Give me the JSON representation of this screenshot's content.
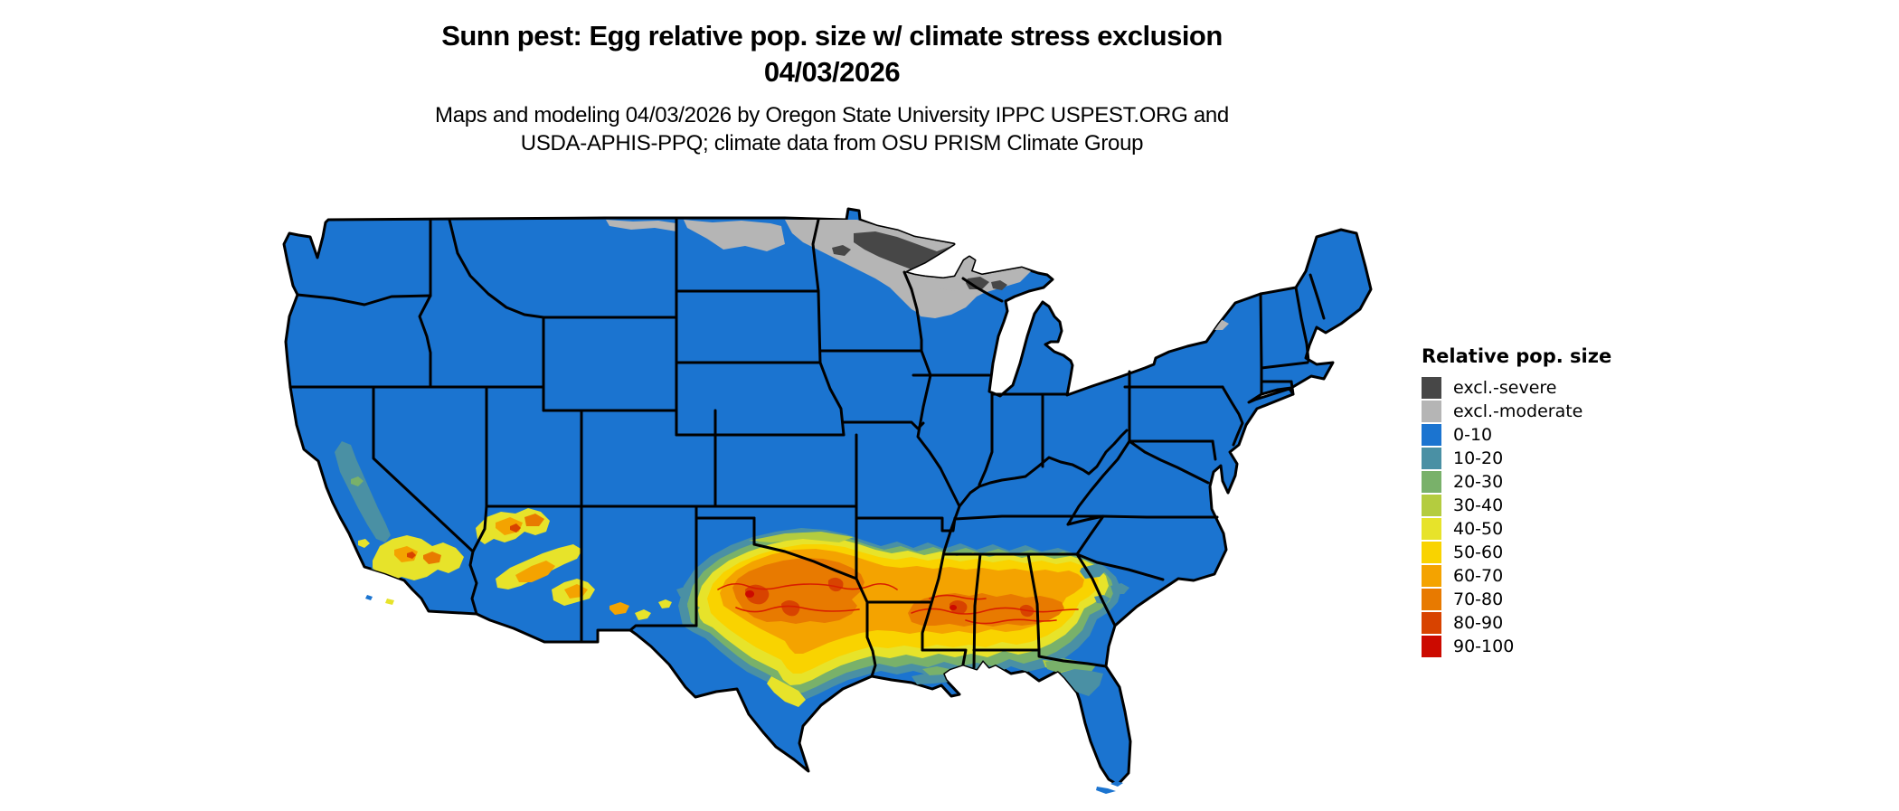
{
  "header": {
    "title_line1": "Sunn pest: Egg relative pop. size w/ climate stress exclusion",
    "title_line2": "04/03/2026",
    "subtitle_line1": "Maps and modeling 04/03/2026 by Oregon State University IPPC USPEST.ORG and",
    "subtitle_line2": "USDA-APHIS-PPQ; climate data from OSU PRISM Climate Group"
  },
  "legend": {
    "title": "Relative pop. size",
    "items": [
      {
        "label": "excl.-severe",
        "color": "#474747"
      },
      {
        "label": "excl.-moderate",
        "color": "#b5b5b5"
      },
      {
        "label": "0-10",
        "color": "#1b74d0"
      },
      {
        "label": "10-20",
        "color": "#4a90a4"
      },
      {
        "label": "20-30",
        "color": "#79b16a"
      },
      {
        "label": "30-40",
        "color": "#b4cc3f"
      },
      {
        "label": "40-50",
        "color": "#e7e32a"
      },
      {
        "label": "50-60",
        "color": "#f9d300"
      },
      {
        "label": "60-70",
        "color": "#f4a300"
      },
      {
        "label": "70-80",
        "color": "#e87a00"
      },
      {
        "label": "80-90",
        "color": "#d84300"
      },
      {
        "label": "90-100",
        "color": "#cc0a00"
      }
    ]
  },
  "map": {
    "type": "choropleth-raster",
    "area": "Continental United States with state boundaries",
    "background_class": "0-10",
    "border_color": "#000000",
    "water_color": "#ffffff",
    "contour_color": "#d81e00",
    "regions": [
      {
        "area": "Northeastern Minnesota arrowhead and spots in upper Michigan",
        "class": "excl.-severe"
      },
      {
        "area": "Northern Minnesota, northern Wisconsin, upper Michigan, northern strip of Montana and North Dakota",
        "class": "excl.-moderate"
      },
      {
        "area": "Most of the continental US",
        "class": "0-10"
      },
      {
        "area": "Band from central/north Texas and southern Oklahoma through northern Louisiana, central Mississippi, Alabama and Georgia",
        "class": "40-100"
      },
      {
        "area": "Southern California, Arizona and southern New Mexico mottled patches",
        "class": "30-90"
      },
      {
        "area": "California Central Valley",
        "class": "10-30"
      },
      {
        "area": "Northern Florida and Gulf coast transition fringe",
        "class": "10-50"
      },
      {
        "area": "South Texas, Florida peninsula, coastal Atlantic",
        "class": "0-10"
      }
    ]
  }
}
